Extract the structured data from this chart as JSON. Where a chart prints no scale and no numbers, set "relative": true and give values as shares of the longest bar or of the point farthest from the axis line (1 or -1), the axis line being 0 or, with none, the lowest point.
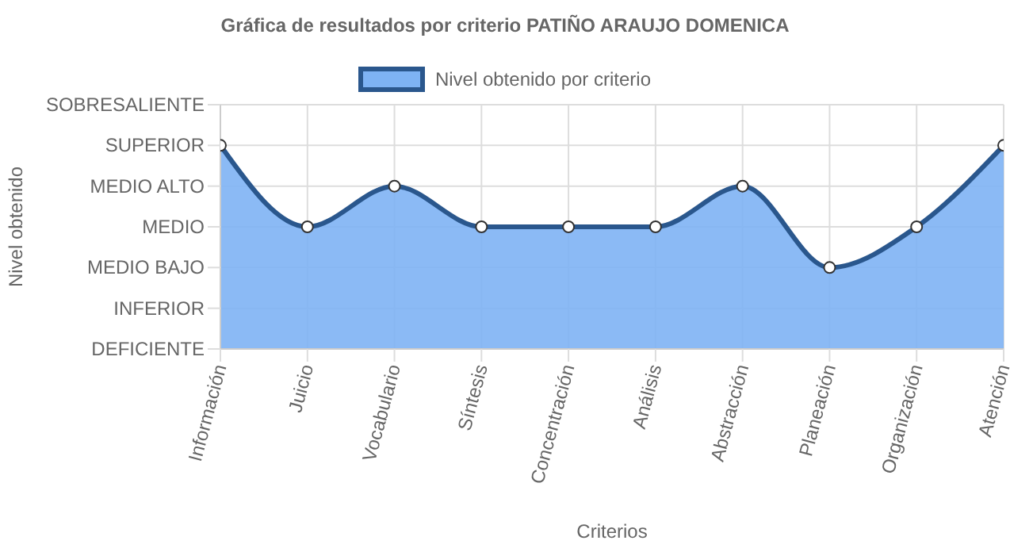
{
  "chart_data": {
    "type": "area",
    "title": "Gráfica de resultados por criterio PATIÑO ARAUJO DOMENICA",
    "xlabel": "Criterios",
    "categories": [
      "Información",
      "Juicio",
      "Vocabulario",
      "Síntesis",
      "Concentración",
      "Análisis",
      "Abstracción",
      "Planeación",
      "Organización",
      "Atención"
    ],
    "series": [
      {
        "name": "Nivel obtenido por criterio",
        "color": "#7eb3f4",
        "values": [
          1,
          0.6,
          0.8,
          0.6,
          0.6,
          0.6,
          0.8,
          0.4,
          0.6,
          1
        ]
      }
    ],
    "relative": true,
    "annotations": [
      "Nivel obtenido",
      "SOBRESALIENTE",
      "SUPERIOR",
      "MEDIO ALTO",
      "MEDIO",
      "MEDIO BAJO",
      "INFERIOR",
      "DEFICIENTE"
    ],
    "grid": true,
    "legend": "top",
    "marker": "circle",
    "line_style": "solid"
  }
}
